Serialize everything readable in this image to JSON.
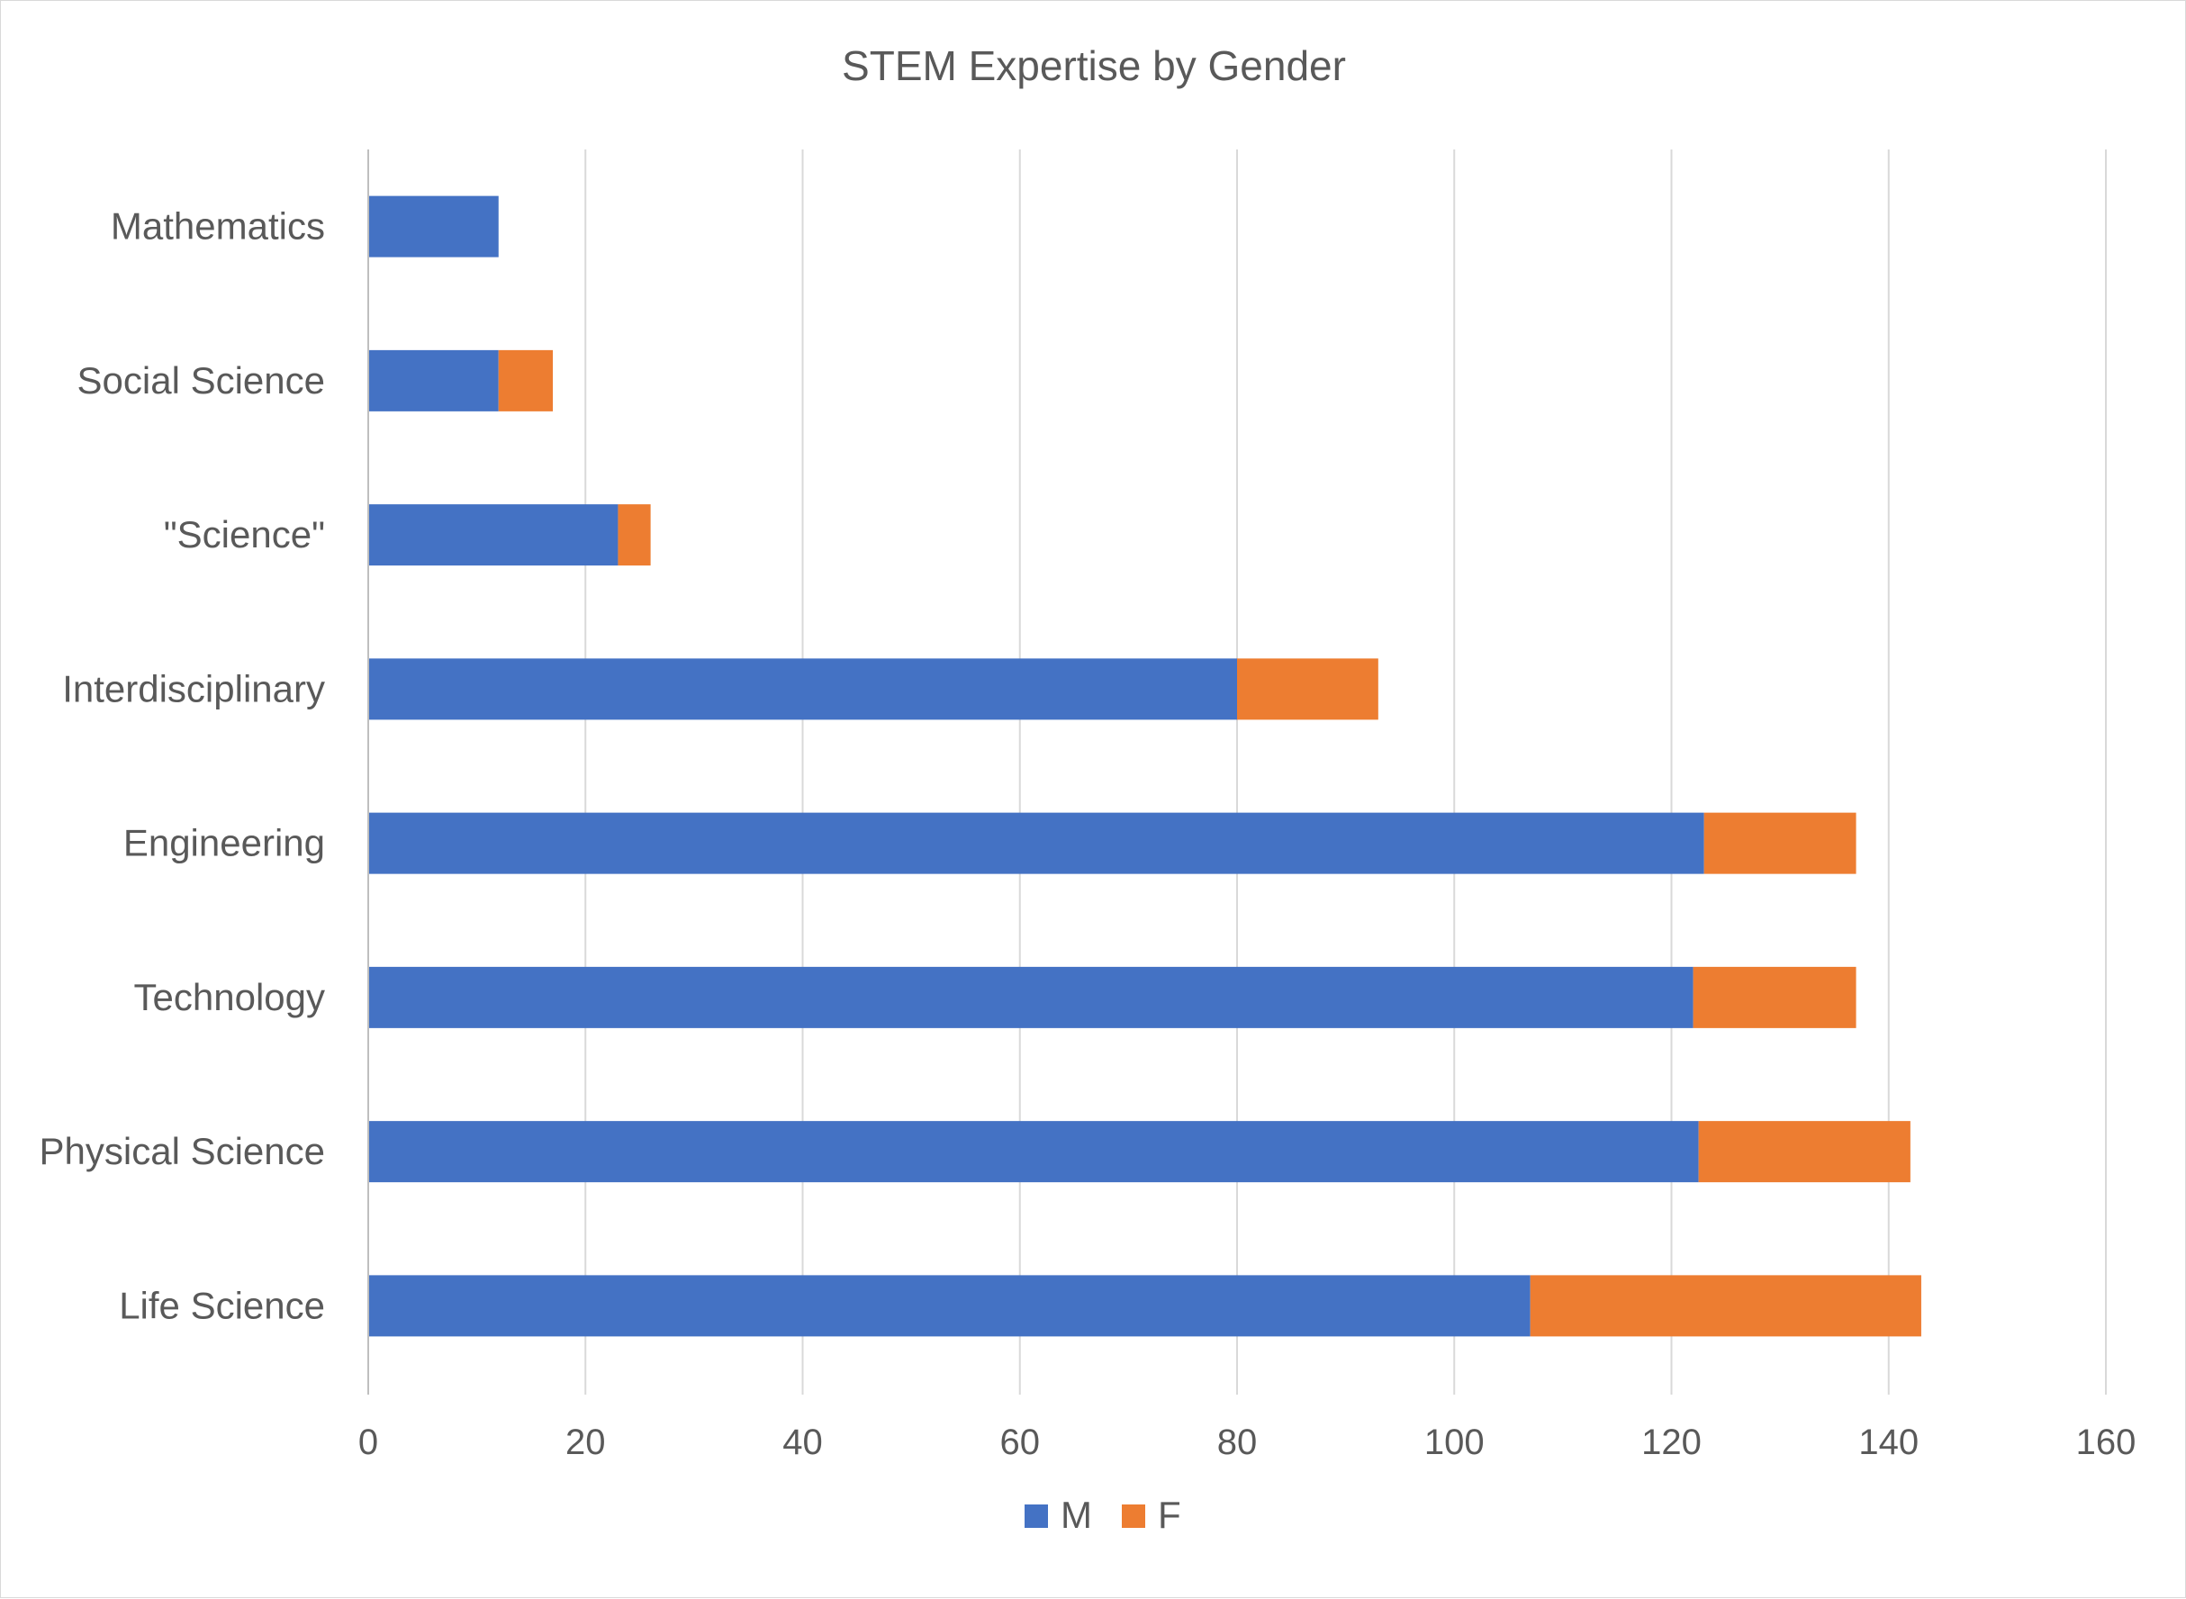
{
  "chart_data": {
    "type": "bar",
    "orientation": "horizontal",
    "stacked": true,
    "title": "STEM Expertise by Gender",
    "categories": [
      "Life Science",
      "Physical Science",
      "Technology",
      "Engineering",
      "Interdisciplinary",
      "\"Science\"",
      "Social Science",
      "Mathematics"
    ],
    "series": [
      {
        "name": "M",
        "color": "#4472c4",
        "values": [
          107,
          122.5,
          122,
          123,
          80,
          23,
          12,
          12
        ]
      },
      {
        "name": "F",
        "color": "#ed7d31",
        "values": [
          36,
          19.5,
          15,
          14,
          13,
          3,
          5,
          0
        ]
      }
    ],
    "xlim": [
      0,
      160
    ],
    "x_ticks": [
      "0",
      "20",
      "40",
      "60",
      "80",
      "100",
      "120",
      "140",
      "160"
    ],
    "grid": "vertical major gridlines",
    "legend": "bottom",
    "xlabel": "",
    "ylabel": ""
  }
}
